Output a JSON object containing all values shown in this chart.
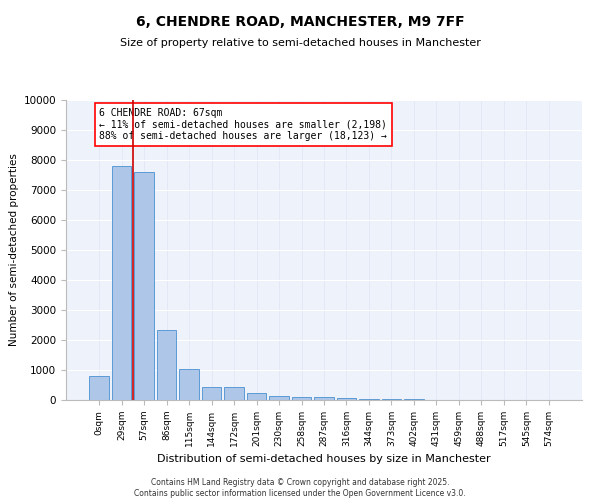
{
  "title": "6, CHENDRE ROAD, MANCHESTER, M9 7FF",
  "subtitle": "Size of property relative to semi-detached houses in Manchester",
  "xlabel": "Distribution of semi-detached houses by size in Manchester",
  "ylabel": "Number of semi-detached properties",
  "bar_labels": [
    "0sqm",
    "29sqm",
    "57sqm",
    "86sqm",
    "115sqm",
    "144sqm",
    "172sqm",
    "201sqm",
    "230sqm",
    "258sqm",
    "287sqm",
    "316sqm",
    "344sqm",
    "373sqm",
    "402sqm",
    "431sqm",
    "459sqm",
    "488sqm",
    "517sqm",
    "545sqm",
    "574sqm"
  ],
  "bar_values": [
    800,
    7800,
    7600,
    2350,
    1050,
    450,
    450,
    250,
    150,
    100,
    100,
    60,
    40,
    30,
    20,
    15,
    10,
    8,
    5,
    3,
    2
  ],
  "bar_color": "#aec6e8",
  "bar_edge_color": "#5b9bd5",
  "background_color": "#eef2fb",
  "grid_color": "#ffffff",
  "ylim": [
    0,
    10000
  ],
  "yticks": [
    0,
    1000,
    2000,
    3000,
    4000,
    5000,
    6000,
    7000,
    8000,
    9000,
    10000
  ],
  "property_line_x": 1.5,
  "property_line_color": "#cc0000",
  "annotation_text": "6 CHENDRE ROAD: 67sqm\n← 11% of semi-detached houses are smaller (2,198)\n88% of semi-detached houses are larger (18,123) →",
  "footer_line1": "Contains HM Land Registry data © Crown copyright and database right 2025.",
  "footer_line2": "Contains public sector information licensed under the Open Government Licence v3.0."
}
